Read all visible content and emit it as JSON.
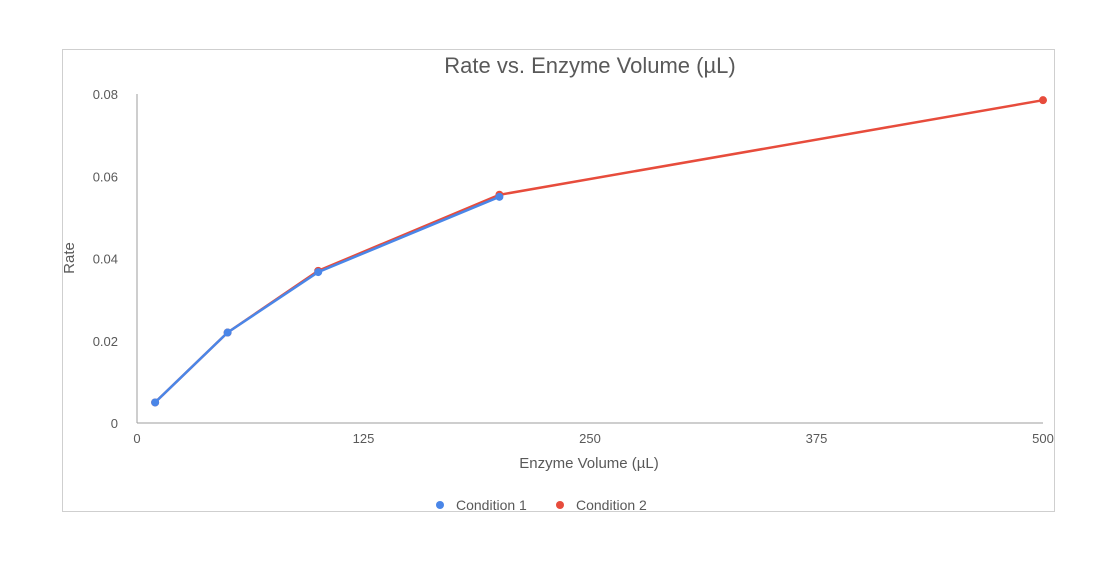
{
  "chart_data": {
    "type": "line",
    "title": "Rate vs. Enzyme Volume (µL)",
    "xlabel": "Enzyme Volume (µL)",
    "ylabel": "Rate",
    "xlim": [
      0,
      500
    ],
    "ylim": [
      0,
      0.08
    ],
    "x_ticks": [
      0,
      125,
      250,
      375,
      500
    ],
    "y_ticks": [
      0,
      0.02,
      0.04,
      0.06,
      0.08
    ],
    "x_tick_labels": [
      "0",
      "125",
      "250",
      "375",
      "500"
    ],
    "y_tick_labels": [
      "0",
      "0.02",
      "0.04",
      "0.06",
      "0.08"
    ],
    "grid": false,
    "legend": "bottom",
    "series": [
      {
        "name": "Condition 1",
        "color": "#4a86e8",
        "x": [
          10,
          50,
          100,
          200
        ],
        "y": [
          0.005,
          0.022,
          0.0367,
          0.055
        ]
      },
      {
        "name": "Condition 2",
        "color": "#e74c3c",
        "x": [
          10,
          50,
          100,
          200,
          500
        ],
        "y": [
          0.005,
          0.022,
          0.037,
          0.0555,
          0.0785
        ]
      }
    ]
  }
}
